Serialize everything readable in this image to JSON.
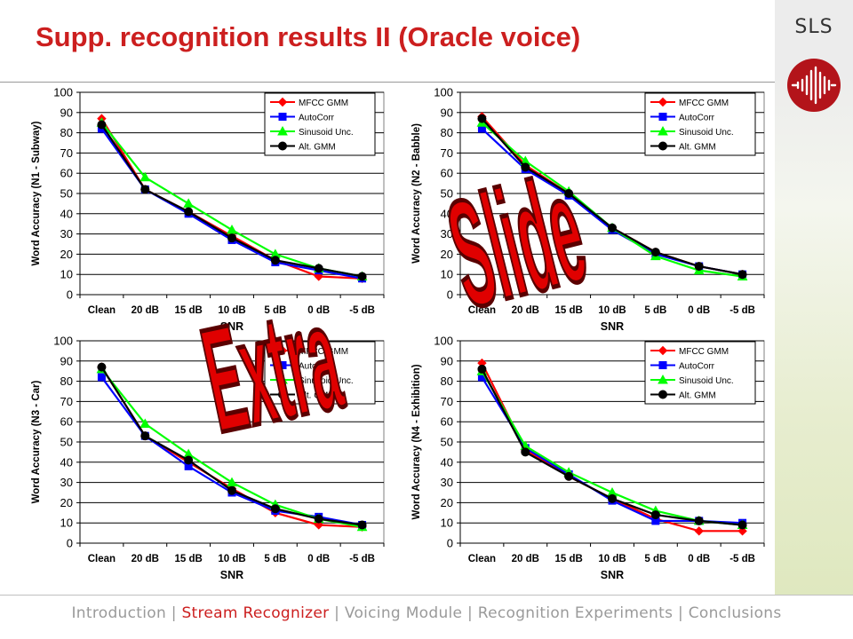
{
  "slide": {
    "title": "Supp. recognition results II (Oracle voice)",
    "logo_text": "SLS",
    "watermark_words": [
      "Extra",
      "Slide"
    ],
    "watermark_color": "#e00000",
    "accent_color": "#cc1f1f"
  },
  "footer": {
    "separator": "|",
    "items": [
      {
        "label": "Introduction",
        "active": false
      },
      {
        "label": "Stream Recognizer",
        "active": true
      },
      {
        "label": "Voicing Module",
        "active": false
      },
      {
        "label": "Recognition Experiments",
        "active": false
      },
      {
        "label": "Conclusions",
        "active": false
      }
    ]
  },
  "series_styles": [
    {
      "name": "MFCC GMM",
      "color": "#ff0000",
      "marker": "diamond"
    },
    {
      "name": "AutoCorr",
      "color": "#0000ff",
      "marker": "square"
    },
    {
      "name": "Sinusoid Unc.",
      "color": "#00ff00",
      "marker": "triangle"
    },
    {
      "name": "Alt. GMM",
      "color": "#000000",
      "marker": "circle"
    }
  ],
  "chart_data": [
    {
      "type": "line",
      "title": "",
      "xlabel": "SNR",
      "ylabel": "Word Accuracy (N1 - Subway)",
      "categories": [
        "Clean",
        "20 dB",
        "15 dB",
        "10 dB",
        "5 dB",
        "0 dB",
        "-5 dB"
      ],
      "ylim": [
        0,
        100
      ],
      "yticks": [
        "0",
        "10",
        "20",
        "30",
        "40",
        "50",
        "60",
        "70",
        "80",
        "90",
        "100"
      ],
      "grid": true,
      "legend_position": "top-right",
      "series": [
        {
          "name": "MFCC GMM",
          "values": [
            87,
            52,
            41,
            29,
            17,
            9,
            8
          ]
        },
        {
          "name": "AutoCorr",
          "values": [
            82,
            52,
            40,
            27,
            16,
            12,
            8
          ]
        },
        {
          "name": "Sinusoid Unc.",
          "values": [
            85,
            58,
            45,
            32,
            20,
            13,
            9
          ]
        },
        {
          "name": "Alt. GMM",
          "values": [
            84,
            52,
            41,
            28,
            17,
            13,
            9
          ]
        }
      ]
    },
    {
      "type": "line",
      "title": "",
      "xlabel": "SNR",
      "ylabel": "Word Accuracy (N2 - Babble)",
      "categories": [
        "Clean",
        "20 dB",
        "15 dB",
        "10 dB",
        "5 dB",
        "0 dB",
        "-5 dB"
      ],
      "ylim": [
        0,
        100
      ],
      "yticks": [
        "0",
        "10",
        "20",
        "30",
        "40",
        "50",
        "60",
        "70",
        "80",
        "90",
        "100"
      ],
      "grid": true,
      "legend_position": "top-right",
      "series": [
        {
          "name": "MFCC GMM",
          "values": [
            88,
            64,
            50,
            33,
            21,
            14,
            10
          ]
        },
        {
          "name": "AutoCorr",
          "values": [
            82,
            62,
            49,
            32,
            20,
            14,
            10
          ]
        },
        {
          "name": "Sinusoid Unc.",
          "values": [
            85,
            66,
            51,
            33,
            19,
            12,
            9
          ]
        },
        {
          "name": "Alt. GMM",
          "values": [
            87,
            63,
            50,
            33,
            21,
            14,
            10
          ]
        }
      ]
    },
    {
      "type": "line",
      "title": "",
      "xlabel": "SNR",
      "ylabel": "Word Accuracy (N3 - Car)",
      "categories": [
        "Clean",
        "20 dB",
        "15 dB",
        "10 dB",
        "5 dB",
        "0 dB",
        "-5 dB"
      ],
      "ylim": [
        0,
        100
      ],
      "yticks": [
        "0",
        "10",
        "20",
        "30",
        "40",
        "50",
        "60",
        "70",
        "80",
        "90",
        "100"
      ],
      "grid": true,
      "legend_position": "top-right",
      "series": [
        {
          "name": "MFCC GMM",
          "values": [
            87,
            53,
            40,
            27,
            15,
            9,
            8
          ]
        },
        {
          "name": "AutoCorr",
          "values": [
            82,
            53,
            38,
            25,
            16,
            13,
            9
          ]
        },
        {
          "name": "Sinusoid Unc.",
          "values": [
            86,
            59,
            44,
            30,
            19,
            12,
            8
          ]
        },
        {
          "name": "Alt. GMM",
          "values": [
            87,
            53,
            41,
            26,
            17,
            12,
            9
          ]
        }
      ]
    },
    {
      "type": "line",
      "title": "",
      "xlabel": "SNR",
      "ylabel": "Word Accuracy (N4 - Exhibition)",
      "categories": [
        "Clean",
        "20 dB",
        "15 dB",
        "10 dB",
        "5 dB",
        "0 dB",
        "-5 dB"
      ],
      "ylim": [
        0,
        100
      ],
      "yticks": [
        "0",
        "10",
        "20",
        "30",
        "40",
        "50",
        "60",
        "70",
        "80",
        "90",
        "100"
      ],
      "grid": true,
      "legend_position": "top-right",
      "series": [
        {
          "name": "MFCC GMM",
          "values": [
            89,
            46,
            33,
            22,
            12,
            6,
            6
          ]
        },
        {
          "name": "AutoCorr",
          "values": [
            82,
            47,
            34,
            21,
            11,
            11,
            10
          ]
        },
        {
          "name": "Sinusoid Unc.",
          "values": [
            85,
            48,
            35,
            25,
            16,
            11,
            9
          ]
        },
        {
          "name": "Alt. GMM",
          "values": [
            86,
            45,
            33,
            22,
            14,
            11,
            9
          ]
        }
      ]
    }
  ]
}
